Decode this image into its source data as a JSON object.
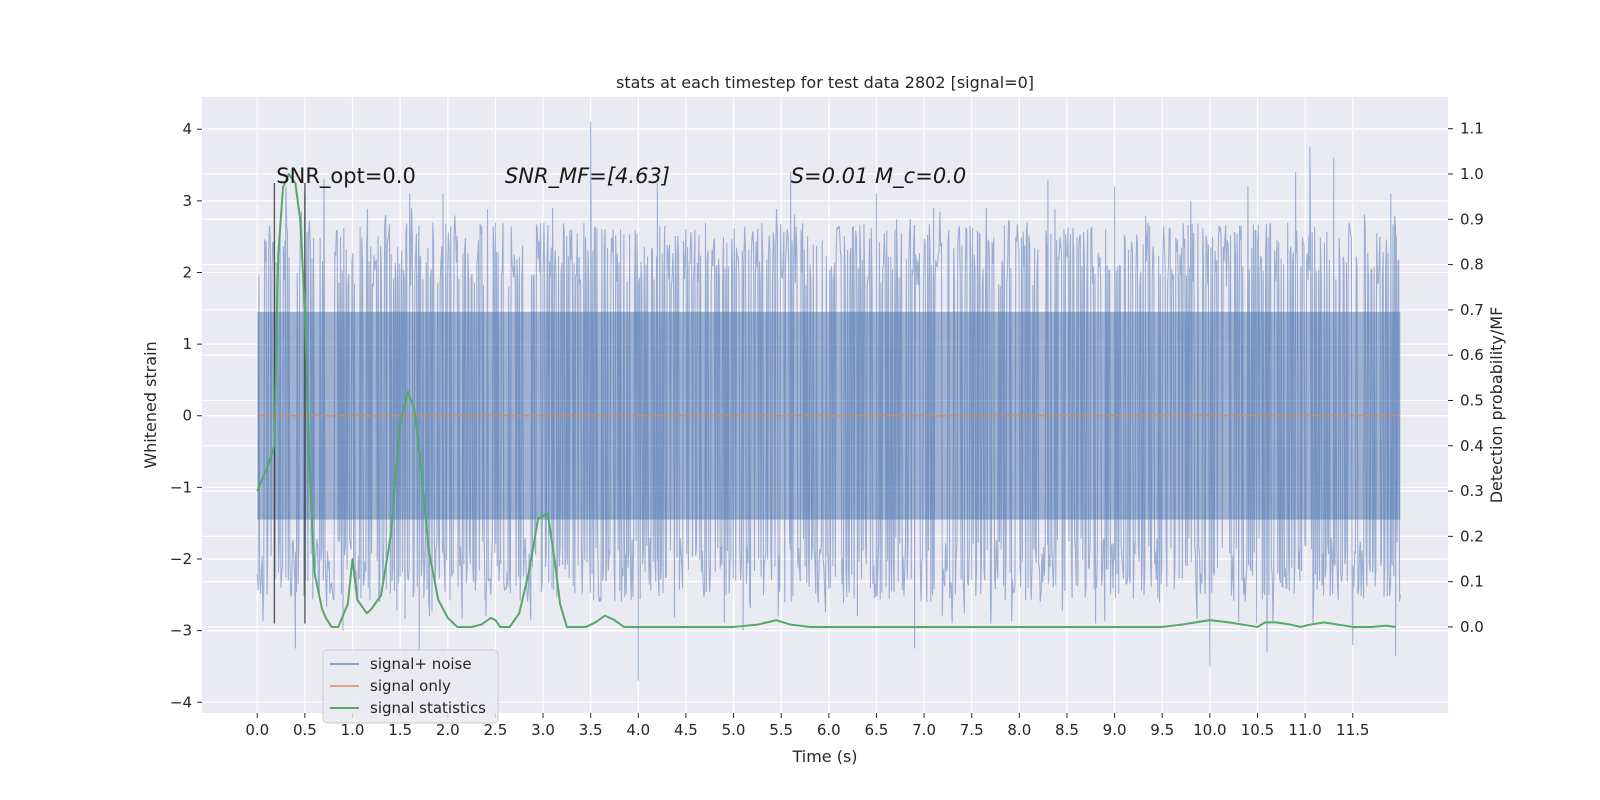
{
  "chart_data": {
    "type": "line",
    "title": "stats at each timestep for test data 2802 [signal=0]",
    "xlabel": "Time (s)",
    "ylabel_left": "Whitened strain",
    "ylabel_right": "Detection probability/MF",
    "xlim": [
      -0.58,
      12.5
    ],
    "ylim_left": [
      -4.15,
      4.45
    ],
    "ylim_right": [
      -0.19,
      1.17
    ],
    "grid": true,
    "legend_position": "lower-left",
    "x_ticks": [
      "0.0",
      "0.5",
      "1.0",
      "1.5",
      "2.0",
      "2.5",
      "3.0",
      "3.5",
      "4.0",
      "4.5",
      "5.0",
      "5.5",
      "6.0",
      "6.5",
      "7.0",
      "7.5",
      "8.0",
      "8.5",
      "9.0",
      "9.5",
      "10.0",
      "10.5",
      "11.0",
      "11.5"
    ],
    "y_left_ticks": [
      4,
      3,
      2,
      1,
      0,
      -1,
      -2,
      -3,
      -4
    ],
    "y_right_ticks": [
      1.1,
      1.0,
      0.9,
      0.8,
      0.7,
      0.6,
      0.5,
      0.4,
      0.3,
      0.2,
      0.1,
      0.0
    ],
    "annotations": [
      {
        "text": "SNR_opt=0.0",
        "x": 0.2,
        "y": 3.25,
        "italic": false
      },
      {
        "text": "SNR_MF=[4.63]",
        "x": 2.6,
        "y": 3.25,
        "italic": true
      },
      {
        "text": "S=0.01   M_c=0.0",
        "x": 5.6,
        "y": 3.25,
        "italic": true
      }
    ],
    "vertical_markers": [
      {
        "x": 0.18,
        "y_range": [
          -2.9,
          3.25
        ]
      },
      {
        "x": 0.5,
        "y_range": [
          -2.9,
          3.25
        ]
      }
    ],
    "series": [
      {
        "name": "signal+ noise",
        "axis": "left",
        "color": "#4c72b0",
        "opacity": 0.5,
        "style": "noise",
        "t_range": [
          0,
          12
        ],
        "band_low": -1.7,
        "band_high": 1.8,
        "peaks_high": [
          [
            0.3,
            3.2
          ],
          [
            0.5,
            3.1
          ],
          [
            0.7,
            3.3
          ],
          [
            1.35,
            2.8
          ],
          [
            1.6,
            3.1
          ],
          [
            1.95,
            3.1
          ],
          [
            2.5,
            2.7
          ],
          [
            3.1,
            2.9
          ],
          [
            3.5,
            4.1
          ],
          [
            4.2,
            3.25
          ],
          [
            5.6,
            3.4
          ],
          [
            6.5,
            3.1
          ],
          [
            7.1,
            2.9
          ],
          [
            8.3,
            3.3
          ],
          [
            9.0,
            3.2
          ],
          [
            9.8,
            3.0
          ],
          [
            10.4,
            3.2
          ],
          [
            10.9,
            3.4
          ],
          [
            11.05,
            3.75
          ],
          [
            11.3,
            3.6
          ],
          [
            11.9,
            3.1
          ]
        ],
        "peaks_low": [
          [
            0.4,
            -3.25
          ],
          [
            0.9,
            -3.0
          ],
          [
            1.7,
            -3.3
          ],
          [
            2.4,
            -2.8
          ],
          [
            4.0,
            -3.7
          ],
          [
            5.1,
            -3.0
          ],
          [
            6.3,
            -2.8
          ],
          [
            6.9,
            -3.25
          ],
          [
            7.7,
            -2.9
          ],
          [
            8.8,
            -2.9
          ],
          [
            10.0,
            -3.5
          ],
          [
            10.6,
            -3.3
          ],
          [
            11.5,
            -3.2
          ],
          [
            11.95,
            -3.35
          ]
        ]
      },
      {
        "name": "signal only",
        "axis": "left",
        "color": "#dd8452",
        "x": [
          0,
          12
        ],
        "values": [
          0,
          0
        ]
      },
      {
        "name": "signal statistics",
        "axis": "right",
        "color": "#55a868",
        "x": [
          0.0,
          0.12,
          0.18,
          0.22,
          0.27,
          0.33,
          0.4,
          0.45,
          0.5,
          0.55,
          0.6,
          0.68,
          0.72,
          0.78,
          0.85,
          0.95,
          1.0,
          1.05,
          1.15,
          1.2,
          1.3,
          1.4,
          1.5,
          1.58,
          1.65,
          1.72,
          1.8,
          1.9,
          2.0,
          2.1,
          2.25,
          2.35,
          2.45,
          2.5,
          2.55,
          2.65,
          2.75,
          2.85,
          2.95,
          3.05,
          3.12,
          3.18,
          3.25,
          3.3,
          3.35,
          3.45,
          3.55,
          3.65,
          3.75,
          3.85,
          4.0,
          4.5,
          5.0,
          5.25,
          5.45,
          5.6,
          5.8,
          6.0,
          7.0,
          8.0,
          9.0,
          9.5,
          9.7,
          9.85,
          10.0,
          10.2,
          10.35,
          10.5,
          10.58,
          10.7,
          10.85,
          10.95,
          11.05,
          11.2,
          11.35,
          11.5,
          11.7,
          11.85,
          11.95
        ],
        "values": [
          0.3,
          0.36,
          0.4,
          0.82,
          0.97,
          1.0,
          0.98,
          0.9,
          0.7,
          0.35,
          0.12,
          0.04,
          0.02,
          0.0,
          0.0,
          0.05,
          0.15,
          0.06,
          0.03,
          0.04,
          0.07,
          0.2,
          0.45,
          0.52,
          0.48,
          0.35,
          0.17,
          0.06,
          0.02,
          0.0,
          0.0,
          0.005,
          0.02,
          0.015,
          0.0,
          0.0,
          0.03,
          0.12,
          0.24,
          0.25,
          0.15,
          0.05,
          0.0,
          0.0,
          0.0,
          0.0,
          0.01,
          0.025,
          0.015,
          0.0,
          0.0,
          0.0,
          0.0,
          0.005,
          0.015,
          0.005,
          0.0,
          0.0,
          0.0,
          0.0,
          0.0,
          0.0,
          0.005,
          0.01,
          0.015,
          0.01,
          0.005,
          0.0,
          0.01,
          0.01,
          0.005,
          0.0,
          0.005,
          0.01,
          0.005,
          0.0,
          0.0,
          0.003,
          0.0
        ]
      }
    ]
  }
}
